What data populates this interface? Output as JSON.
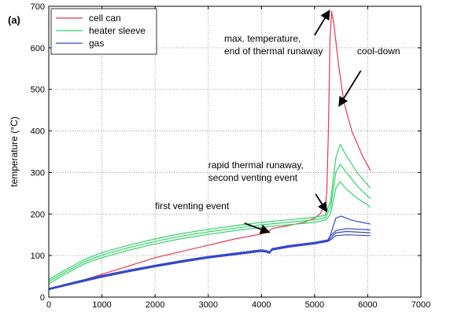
{
  "figure": {
    "panel_label": "(a)"
  },
  "chart_data": {
    "type": "line",
    "xlabel": "",
    "ylabel": "temperature (°C)",
    "xlim": [
      0,
      7000
    ],
    "ylim": [
      0,
      700
    ],
    "x_ticks": [
      0,
      1000,
      2000,
      3000,
      4000,
      5000,
      6000,
      7000
    ],
    "y_ticks": [
      0,
      100,
      200,
      300,
      400,
      500,
      600,
      700
    ],
    "grid": "dotted",
    "legend_position": "top-left",
    "series": [
      {
        "name": "cell can",
        "color": "#e8384f",
        "lines": [
          [
            [
              0,
              20
            ],
            [
              500,
              35
            ],
            [
              1000,
              55
            ],
            [
              1500,
              75
            ],
            [
              2000,
              95
            ],
            [
              2500,
              110
            ],
            [
              3000,
              125
            ],
            [
              3500,
              140
            ],
            [
              4000,
              152
            ],
            [
              4100,
              156
            ],
            [
              4150,
              160
            ],
            [
              4200,
              165
            ],
            [
              4500,
              172
            ],
            [
              4800,
              180
            ],
            [
              5000,
              190
            ],
            [
              5100,
              200
            ],
            [
              5200,
              222
            ],
            [
              5230,
              250
            ],
            [
              5260,
              400
            ],
            [
              5290,
              620
            ],
            [
              5320,
              688
            ],
            [
              5360,
              660
            ],
            [
              5450,
              560
            ],
            [
              5550,
              470
            ],
            [
              5700,
              400
            ],
            [
              5900,
              340
            ],
            [
              6050,
              305
            ]
          ]
        ]
      },
      {
        "name": "heater sleeve",
        "color": "#33d46a",
        "lines": [
          [
            [
              0,
              42
            ],
            [
              300,
              65
            ],
            [
              700,
              92
            ],
            [
              1000,
              107
            ],
            [
              1500,
              125
            ],
            [
              2000,
              140
            ],
            [
              2500,
              153
            ],
            [
              3000,
              163
            ],
            [
              3500,
              172
            ],
            [
              4000,
              180
            ],
            [
              4500,
              186
            ],
            [
              5000,
              192
            ],
            [
              5200,
              197
            ],
            [
              5300,
              230
            ],
            [
              5400,
              335
            ],
            [
              5480,
              368
            ],
            [
              5600,
              340
            ],
            [
              5800,
              300
            ],
            [
              6000,
              270
            ],
            [
              6050,
              262
            ]
          ],
          [
            [
              0,
              37
            ],
            [
              300,
              60
            ],
            [
              700,
              87
            ],
            [
              1000,
              101
            ],
            [
              1500,
              119
            ],
            [
              2000,
              134
            ],
            [
              2500,
              147
            ],
            [
              3000,
              157
            ],
            [
              3500,
              166
            ],
            [
              4000,
              174
            ],
            [
              4500,
              180
            ],
            [
              5000,
              186
            ],
            [
              5200,
              191
            ],
            [
              5300,
              215
            ],
            [
              5400,
              300
            ],
            [
              5480,
              320
            ],
            [
              5600,
              300
            ],
            [
              5800,
              268
            ],
            [
              6000,
              243
            ],
            [
              6050,
              237
            ]
          ],
          [
            [
              0,
              32
            ],
            [
              300,
              55
            ],
            [
              700,
              82
            ],
            [
              1000,
              95
            ],
            [
              1500,
              113
            ],
            [
              2000,
              128
            ],
            [
              2500,
              141
            ],
            [
              3000,
              151
            ],
            [
              3500,
              160
            ],
            [
              4000,
              168
            ],
            [
              4500,
              174
            ],
            [
              5000,
              180
            ],
            [
              5200,
              185
            ],
            [
              5300,
              200
            ],
            [
              5400,
              262
            ],
            [
              5480,
              278
            ],
            [
              5600,
              260
            ],
            [
              5800,
              238
            ],
            [
              6000,
              222
            ],
            [
              6050,
              216
            ]
          ]
        ]
      },
      {
        "name": "gas",
        "color": "#3347c8",
        "lines": [
          [
            [
              0,
              20
            ],
            [
              500,
              35
            ],
            [
              1000,
              50
            ],
            [
              1500,
              63
            ],
            [
              2000,
              75
            ],
            [
              2500,
              86
            ],
            [
              3000,
              96
            ],
            [
              3500,
              104
            ],
            [
              4000,
              112
            ],
            [
              4100,
              110
            ],
            [
              4150,
              107
            ],
            [
              4200,
              115
            ],
            [
              4500,
              122
            ],
            [
              5000,
              130
            ],
            [
              5250,
              136
            ],
            [
              5300,
              150
            ],
            [
              5400,
              190
            ],
            [
              5500,
              195
            ],
            [
              5700,
              185
            ],
            [
              6050,
              176
            ]
          ],
          [
            [
              0,
              21
            ],
            [
              500,
              37
            ],
            [
              1000,
              52
            ],
            [
              1500,
              65
            ],
            [
              2000,
              77
            ],
            [
              2500,
              88
            ],
            [
              3000,
              98
            ],
            [
              3500,
              106
            ],
            [
              4000,
              114
            ],
            [
              4100,
              112
            ],
            [
              4150,
              109
            ],
            [
              4200,
              117
            ],
            [
              4500,
              124
            ],
            [
              5000,
              132
            ],
            [
              5250,
              138
            ],
            [
              5300,
              148
            ],
            [
              5400,
              160
            ],
            [
              5600,
              165
            ],
            [
              6050,
              162
            ]
          ],
          [
            [
              0,
              19
            ],
            [
              500,
              34
            ],
            [
              1000,
              49
            ],
            [
              1500,
              62
            ],
            [
              2000,
              74
            ],
            [
              2500,
              85
            ],
            [
              3000,
              95
            ],
            [
              3500,
              103
            ],
            [
              4000,
              111
            ],
            [
              4100,
              109
            ],
            [
              4150,
              106
            ],
            [
              4200,
              114
            ],
            [
              4500,
              121
            ],
            [
              5000,
              129
            ],
            [
              5250,
              135
            ],
            [
              5300,
              142
            ],
            [
              5400,
              155
            ],
            [
              5600,
              158
            ],
            [
              6050,
              155
            ]
          ],
          [
            [
              0,
              18
            ],
            [
              500,
              33
            ],
            [
              1000,
              48
            ],
            [
              1500,
              61
            ],
            [
              2000,
              73
            ],
            [
              2500,
              84
            ],
            [
              3000,
              94
            ],
            [
              3500,
              102
            ],
            [
              4000,
              110
            ],
            [
              4100,
              108
            ],
            [
              4150,
              105
            ],
            [
              4200,
              113
            ],
            [
              4500,
              120
            ],
            [
              5000,
              128
            ],
            [
              5250,
              134
            ],
            [
              5300,
              138
            ],
            [
              5400,
              148
            ],
            [
              5600,
              150
            ],
            [
              6050,
              148
            ]
          ]
        ]
      }
    ],
    "annotations": [
      {
        "lines": [
          "max. temperature,",
          "end of thermal runaway"
        ],
        "text_at": [
          3300,
          615
        ],
        "arrow_from": [
          5000,
          630
        ],
        "arrow_to": [
          5280,
          690
        ]
      },
      {
        "lines": [
          "cool-down"
        ],
        "text_at": [
          5800,
          585
        ],
        "arrow_from": [
          5870,
          545
        ],
        "arrow_to": [
          5460,
          460
        ]
      },
      {
        "lines": [
          "rapid thermal runaway,",
          "second venting event"
        ],
        "text_at": [
          3000,
          310
        ],
        "arrow_from": [
          5020,
          248
        ],
        "arrow_to": [
          5230,
          206
        ]
      },
      {
        "lines": [
          "first venting event"
        ],
        "text_at": [
          2000,
          212
        ],
        "arrow_from": [
          3680,
          178
        ],
        "arrow_to": [
          4150,
          156
        ]
      }
    ]
  }
}
